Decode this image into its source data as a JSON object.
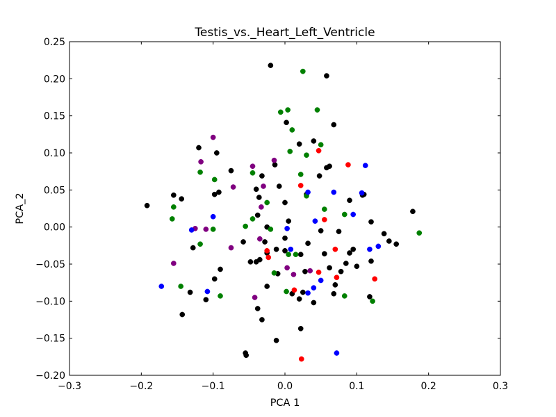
{
  "chart_data": {
    "type": "scatter",
    "title": "Testis_vs._Heart_Left_Ventricle",
    "xlabel": "PCA 1",
    "ylabel": "PCA_2",
    "xlim": [
      -0.3,
      0.3
    ],
    "ylim": [
      -0.2,
      0.25
    ],
    "xticks": [
      -0.3,
      -0.2,
      -0.1,
      0.0,
      0.1,
      0.2,
      0.3
    ],
    "xtick_labels": [
      "−0.3",
      "−0.2",
      "−0.1",
      "0.0",
      "0.1",
      "0.2",
      "0.3"
    ],
    "yticks": [
      -0.2,
      -0.15,
      -0.1,
      -0.05,
      0.0,
      0.05,
      0.1,
      0.15,
      0.2,
      0.25
    ],
    "ytick_labels": [
      "−0.20",
      "−0.15",
      "−0.10",
      "−0.05",
      "0.00",
      "0.05",
      "0.10",
      "0.15",
      "0.20",
      "0.25"
    ],
    "grid": false,
    "legend": "none",
    "series": [
      {
        "color": "#000000",
        "points": [
          [
            -0.02,
            0.218
          ],
          [
            0.058,
            0.204
          ],
          [
            0.068,
            0.138
          ],
          [
            0.002,
            0.141
          ],
          [
            0.04,
            0.116
          ],
          [
            0.02,
            0.112
          ],
          [
            -0.12,
            0.107
          ],
          [
            -0.095,
            0.1
          ],
          [
            0.058,
            0.08
          ],
          [
            0.062,
            0.082
          ],
          [
            0.048,
            0.069
          ],
          [
            0.11,
            0.044
          ],
          [
            0.108,
            0.043
          ],
          [
            -0.075,
            0.076
          ],
          [
            -0.032,
            0.069
          ],
          [
            -0.014,
            0.084
          ],
          [
            -0.04,
            0.051
          ],
          [
            -0.008,
            0.055
          ],
          [
            -0.092,
            0.047
          ],
          [
            -0.098,
            0.044
          ],
          [
            -0.155,
            0.043
          ],
          [
            -0.144,
            0.038
          ],
          [
            -0.036,
            0.04
          ],
          [
            0.0,
            0.033
          ],
          [
            -0.192,
            0.029
          ],
          [
            -0.038,
            0.016
          ],
          [
            0.03,
            0.044
          ],
          [
            0.09,
            0.036
          ],
          [
            -0.025,
            0.0
          ],
          [
            0.005,
            0.008
          ],
          [
            0.12,
            0.007
          ],
          [
            0.178,
            0.021
          ],
          [
            0.138,
            -0.009
          ],
          [
            0.145,
            -0.019
          ],
          [
            0.155,
            -0.023
          ],
          [
            0.12,
            -0.046
          ],
          [
            0.095,
            -0.03
          ],
          [
            0.09,
            -0.035
          ],
          [
            0.085,
            -0.049
          ],
          [
            0.1,
            -0.053
          ],
          [
            0.078,
            -0.06
          ],
          [
            0.07,
            -0.078
          ],
          [
            0.068,
            -0.09
          ],
          [
            0.118,
            -0.094
          ],
          [
            0.032,
            -0.022
          ],
          [
            0.022,
            -0.037
          ],
          [
            0.0,
            -0.032
          ],
          [
            -0.012,
            -0.03
          ],
          [
            -0.025,
            -0.035
          ],
          [
            -0.028,
            -0.02
          ],
          [
            -0.035,
            -0.044
          ],
          [
            -0.048,
            -0.047
          ],
          [
            -0.04,
            -0.047
          ],
          [
            -0.058,
            -0.02
          ],
          [
            -0.098,
            -0.07
          ],
          [
            -0.09,
            -0.057
          ],
          [
            -0.11,
            -0.098
          ],
          [
            -0.132,
            -0.088
          ],
          [
            -0.128,
            -0.028
          ],
          [
            -0.143,
            -0.118
          ],
          [
            -0.038,
            -0.11
          ],
          [
            -0.032,
            -0.125
          ],
          [
            -0.025,
            -0.08
          ],
          [
            0.01,
            -0.09
          ],
          [
            0.02,
            -0.097
          ],
          [
            0.025,
            -0.088
          ],
          [
            0.04,
            -0.102
          ],
          [
            0.055,
            -0.036
          ],
          [
            0.062,
            -0.055
          ],
          [
            -0.012,
            -0.153
          ],
          [
            0.022,
            -0.137
          ],
          [
            -0.055,
            -0.17
          ],
          [
            -0.054,
            -0.173
          ],
          [
            0.028,
            -0.06
          ],
          [
            -0.01,
            -0.063
          ],
          [
            0.05,
            -0.005
          ],
          [
            0.0,
            -0.015
          ],
          [
            0.075,
            -0.006
          ]
        ]
      },
      {
        "color": "#008000",
        "points": [
          [
            0.025,
            0.21
          ],
          [
            0.045,
            0.158
          ],
          [
            0.004,
            0.158
          ],
          [
            -0.006,
            0.155
          ],
          [
            0.01,
            0.131
          ],
          [
            0.05,
            0.111
          ],
          [
            0.03,
            0.097
          ],
          [
            0.007,
            0.102
          ],
          [
            0.022,
            0.071
          ],
          [
            -0.045,
            0.073
          ],
          [
            -0.118,
            0.074
          ],
          [
            -0.098,
            0.064
          ],
          [
            -0.155,
            0.027
          ],
          [
            -0.157,
            0.011
          ],
          [
            0.055,
            0.024
          ],
          [
            -0.025,
            0.033
          ],
          [
            0.03,
            0.042
          ],
          [
            0.083,
            0.017
          ],
          [
            -0.045,
            0.011
          ],
          [
            -0.055,
            0.001
          ],
          [
            -0.1,
            -0.003
          ],
          [
            -0.118,
            -0.023
          ],
          [
            -0.02,
            -0.003
          ],
          [
            -0.09,
            -0.093
          ],
          [
            -0.145,
            -0.08
          ],
          [
            -0.015,
            -0.062
          ],
          [
            0.002,
            -0.087
          ],
          [
            0.015,
            -0.037
          ],
          [
            0.005,
            -0.037
          ],
          [
            0.187,
            -0.008
          ],
          [
            0.122,
            -0.1
          ],
          [
            0.083,
            -0.093
          ]
        ]
      },
      {
        "color": "#800080",
        "points": [
          [
            -0.1,
            0.121
          ],
          [
            -0.117,
            0.088
          ],
          [
            -0.015,
            0.09
          ],
          [
            -0.045,
            0.082
          ],
          [
            -0.072,
            0.054
          ],
          [
            -0.03,
            0.055
          ],
          [
            -0.033,
            0.027
          ],
          [
            -0.035,
            -0.016
          ],
          [
            -0.11,
            -0.003
          ],
          [
            -0.125,
            -0.002
          ],
          [
            -0.075,
            -0.028
          ],
          [
            -0.155,
            -0.049
          ],
          [
            0.003,
            -0.055
          ],
          [
            0.012,
            -0.064
          ],
          [
            0.035,
            -0.059
          ],
          [
            -0.042,
            -0.095
          ]
        ]
      },
      {
        "color": "#0000ff",
        "points": [
          [
            0.032,
            0.047
          ],
          [
            0.068,
            0.047
          ],
          [
            0.112,
            0.083
          ],
          [
            0.107,
            0.046
          ],
          [
            0.095,
            0.017
          ],
          [
            -0.1,
            0.014
          ],
          [
            -0.13,
            -0.004
          ],
          [
            0.042,
            0.008
          ],
          [
            0.003,
            -0.002
          ],
          [
            0.118,
            -0.03
          ],
          [
            0.13,
            -0.026
          ],
          [
            0.008,
            -0.03
          ],
          [
            -0.172,
            -0.08
          ],
          [
            -0.108,
            -0.087
          ],
          [
            0.05,
            -0.072
          ],
          [
            0.04,
            -0.082
          ],
          [
            0.032,
            -0.089
          ],
          [
            0.072,
            -0.17
          ]
        ]
      },
      {
        "color": "#ff0000",
        "points": [
          [
            0.047,
            0.103
          ],
          [
            0.088,
            0.084
          ],
          [
            0.022,
            0.056
          ],
          [
            0.055,
            0.01
          ],
          [
            0.07,
            -0.03
          ],
          [
            -0.025,
            -0.032
          ],
          [
            -0.023,
            -0.041
          ],
          [
            0.047,
            -0.061
          ],
          [
            0.072,
            -0.068
          ],
          [
            0.125,
            -0.07
          ],
          [
            0.013,
            -0.085
          ],
          [
            0.023,
            -0.178
          ]
        ]
      }
    ]
  }
}
